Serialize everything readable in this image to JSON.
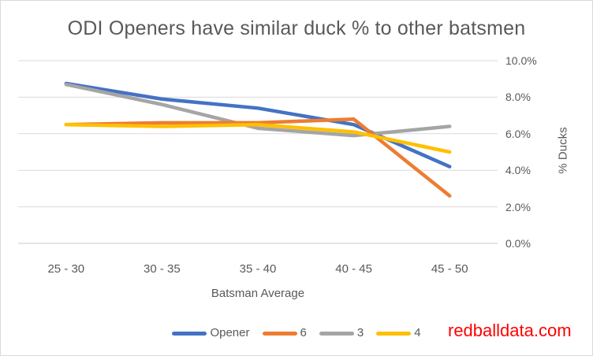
{
  "chart": {
    "title": "ODI Openers have similar duck % to other batsmen",
    "x_axis": {
      "title": "Batsman Average",
      "categories": [
        "25 - 30",
        "30 - 35",
        "35 - 40",
        "40 - 45",
        "45 - 50"
      ]
    },
    "y_axis": {
      "title": "% Ducks",
      "ticks": [
        {
          "value": 10,
          "label": "10.0%"
        },
        {
          "value": 8,
          "label": "8.0%"
        },
        {
          "value": 6,
          "label": "6.0%"
        },
        {
          "value": 4,
          "label": "4.0%"
        },
        {
          "value": 2,
          "label": "2.0%"
        },
        {
          "value": 0,
          "label": "0.0%"
        }
      ]
    },
    "colors": {
      "gridline": "#D9D9D9",
      "axis_line": "#C9C9C9",
      "text": "#595959",
      "watermark": "#FF0000"
    },
    "watermark": "redballdata.com"
  },
  "chart_data": {
    "type": "line",
    "title": "ODI Openers have similar duck % to other batsmen",
    "xlabel": "Batsman Average",
    "ylabel": "% Ducks",
    "categories": [
      "25 - 30",
      "30 - 35",
      "35 - 40",
      "40 - 45",
      "45 - 50"
    ],
    "series": [
      {
        "name": "Opener",
        "color": "#4472C4",
        "values": [
          8.75,
          7.9,
          7.4,
          6.5,
          4.2
        ]
      },
      {
        "name": "6",
        "color": "#ED7D31",
        "values": [
          6.5,
          6.6,
          6.6,
          6.8,
          2.6
        ]
      },
      {
        "name": "3",
        "color": "#A5A5A5",
        "values": [
          8.7,
          7.6,
          6.3,
          5.9,
          6.4
        ]
      },
      {
        "name": "4",
        "color": "#FFC000",
        "values": [
          6.5,
          6.4,
          6.5,
          6.1,
          5.0
        ]
      }
    ],
    "draw_order": [
      0,
      2,
      1,
      3
    ],
    "ylim": [
      0,
      10
    ],
    "y_tick_step": 2,
    "grid": "horizontal",
    "legend_position": "bottom",
    "value_axis_side": "right"
  }
}
